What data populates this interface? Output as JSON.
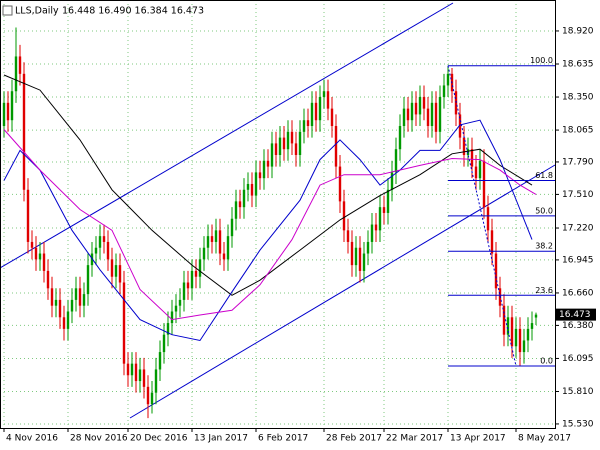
{
  "chart_data": {
    "type": "candlestick",
    "title": "LLS,Daily",
    "header_values": "16.448 16.490 16.384 16.473",
    "up_color": "#009900",
    "down_color": "#e00000",
    "grid": true,
    "grid_color": "#7fc97f",
    "ylim": [
      15.495,
      19.187
    ],
    "xlim": [
      -1,
      137.75
    ],
    "yticks": [
      {
        "value": 18.92,
        "label": "18.920"
      },
      {
        "value": 18.635,
        "label": "18.635"
      },
      {
        "value": 18.35,
        "label": "18.350"
      },
      {
        "value": 18.065,
        "label": "18.065"
      },
      {
        "value": 17.79,
        "label": "17.790"
      },
      {
        "value": 17.51,
        "label": "17.510"
      },
      {
        "value": 17.22,
        "label": "17.220"
      },
      {
        "value": 16.945,
        "label": "16.945"
      },
      {
        "value": 16.66,
        "label": "16.660"
      },
      {
        "value": 16.38,
        "label": "16.380"
      },
      {
        "value": 16.095,
        "label": "16.095"
      },
      {
        "value": 15.81,
        "label": "15.810"
      },
      {
        "value": 15.53,
        "label": "15.530"
      }
    ],
    "xticks": [
      {
        "value": 0,
        "label": "4 Nov 2016"
      },
      {
        "value": 16,
        "label": "28 Nov 2016"
      },
      {
        "value": 31,
        "label": "20 Dec 2016"
      },
      {
        "value": 47,
        "label": "13 Jan 2017"
      },
      {
        "value": 63,
        "label": "6 Feb 2017"
      },
      {
        "value": 80,
        "label": "28 Feb 2017"
      },
      {
        "value": 95,
        "label": "22 Mar 2017"
      },
      {
        "value": 111,
        "label": "13 Apr 2017"
      },
      {
        "value": 128,
        "label": "8 May 2017"
      }
    ],
    "open": [
      18.1,
      18.3,
      18.15,
      18.4,
      18.7,
      18.55,
      17.55,
      17.1,
      17.05,
      16.95,
      17.0,
      16.85,
      16.7,
      16.55,
      16.6,
      16.45,
      16.35,
      16.5,
      16.6,
      16.7,
      16.55,
      16.65,
      16.9,
      17.0,
      17.05,
      17.15,
      17.1,
      16.95,
      16.8,
      16.9,
      16.75,
      16.05,
      15.95,
      16.05,
      15.9,
      16.0,
      15.85,
      15.7,
      15.8,
      16.0,
      16.15,
      16.3,
      16.4,
      16.5,
      16.55,
      16.6,
      16.75,
      16.7,
      16.85,
      16.8,
      16.95,
      17.05,
      17.15,
      17.1,
      17.2,
      17.0,
      16.95,
      17.15,
      17.3,
      17.45,
      17.4,
      17.55,
      17.6,
      17.5,
      17.7,
      17.65,
      17.8,
      17.75,
      17.95,
      17.85,
      18.0,
      17.9,
      18.05,
      17.95,
      17.85,
      18.05,
      18.15,
      18.1,
      18.3,
      18.15,
      18.35,
      18.4,
      18.25,
      18.1,
      17.75,
      17.45,
      17.2,
      17.1,
      16.9,
      17.05,
      16.85,
      17.0,
      17.1,
      17.25,
      17.2,
      17.4,
      17.35,
      17.55,
      17.7,
      17.9,
      18.1,
      18.25,
      18.15,
      18.3,
      18.2,
      18.35,
      18.25,
      18.1,
      18.3,
      18.05,
      18.35,
      18.45,
      18.55,
      18.4,
      18.2,
      18.0,
      17.85,
      17.9,
      17.75,
      17.65,
      17.8,
      17.4,
      17.2,
      17.0,
      16.7,
      16.55,
      16.3,
      16.45,
      16.2,
      16.35,
      16.15,
      16.25,
      16.35,
      16.448
    ],
    "high": [
      18.4,
      18.4,
      18.5,
      18.95,
      18.8,
      18.65,
      17.65,
      17.2,
      17.15,
      17.1,
      17.1,
      16.95,
      16.8,
      16.7,
      16.7,
      16.55,
      16.6,
      16.7,
      16.8,
      16.8,
      16.75,
      17.0,
      17.1,
      17.15,
      17.25,
      17.25,
      17.2,
      17.05,
      17.0,
      17.0,
      16.85,
      16.15,
      16.15,
      16.15,
      16.1,
      16.1,
      15.95,
      15.9,
      16.1,
      16.25,
      16.4,
      16.5,
      16.6,
      16.65,
      16.7,
      16.85,
      16.85,
      16.95,
      16.95,
      17.05,
      17.15,
      17.25,
      17.25,
      17.3,
      17.3,
      17.1,
      17.25,
      17.4,
      17.55,
      17.55,
      17.65,
      17.7,
      17.7,
      17.8,
      17.8,
      17.9,
      17.9,
      18.05,
      18.05,
      18.1,
      18.1,
      18.15,
      18.15,
      18.05,
      18.15,
      18.25,
      18.25,
      18.4,
      18.4,
      18.45,
      18.5,
      18.5,
      18.35,
      18.2,
      17.85,
      17.55,
      17.3,
      17.2,
      17.15,
      17.15,
      17.1,
      17.2,
      17.35,
      17.35,
      17.5,
      17.5,
      17.65,
      17.8,
      18.0,
      18.2,
      18.35,
      18.35,
      18.4,
      18.4,
      18.45,
      18.45,
      18.35,
      18.4,
      18.4,
      18.45,
      18.55,
      18.62,
      18.6,
      18.5,
      18.3,
      18.1,
      18.0,
      18.0,
      17.85,
      17.9,
      17.9,
      17.5,
      17.3,
      17.1,
      16.8,
      16.65,
      16.55,
      16.55,
      16.45,
      16.45,
      16.35,
      16.45,
      16.5,
      16.49
    ],
    "low": [
      18.0,
      18.05,
      18.05,
      18.3,
      18.45,
      17.45,
      17.0,
      16.95,
      16.85,
      16.85,
      16.75,
      16.6,
      16.45,
      16.45,
      16.35,
      16.25,
      16.25,
      16.4,
      16.5,
      16.45,
      16.45,
      16.55,
      16.8,
      16.9,
      16.95,
      17.0,
      16.85,
      16.7,
      16.7,
      16.65,
      15.95,
      15.85,
      15.85,
      15.8,
      15.8,
      15.75,
      15.58,
      15.62,
      15.7,
      15.9,
      16.05,
      16.2,
      16.3,
      16.4,
      16.45,
      16.5,
      16.6,
      16.6,
      16.7,
      16.7,
      16.85,
      16.95,
      17.0,
      17.0,
      16.9,
      16.85,
      16.85,
      17.05,
      17.2,
      17.3,
      17.3,
      17.45,
      17.4,
      17.4,
      17.55,
      17.55,
      17.65,
      17.65,
      17.75,
      17.75,
      17.8,
      17.8,
      17.85,
      17.75,
      17.75,
      17.95,
      18.0,
      18.0,
      18.05,
      18.05,
      18.25,
      18.15,
      18.0,
      17.65,
      17.35,
      17.1,
      17.0,
      16.8,
      16.8,
      16.75,
      16.75,
      16.9,
      17.0,
      17.1,
      17.1,
      17.25,
      17.25,
      17.45,
      17.6,
      17.8,
      18.0,
      18.05,
      18.05,
      18.1,
      18.1,
      18.15,
      18.0,
      18.0,
      17.95,
      17.95,
      18.25,
      18.35,
      18.3,
      18.1,
      17.9,
      17.75,
      17.75,
      17.65,
      17.55,
      17.55,
      17.3,
      17.1,
      16.9,
      16.6,
      16.45,
      16.2,
      16.2,
      16.1,
      16.1,
      16.03,
      16.05,
      16.15,
      16.25,
      16.384
    ],
    "close": [
      18.3,
      18.15,
      18.4,
      18.7,
      18.55,
      17.55,
      17.1,
      17.05,
      16.95,
      17.0,
      16.85,
      16.7,
      16.55,
      16.6,
      16.45,
      16.35,
      16.5,
      16.6,
      16.7,
      16.55,
      16.65,
      16.9,
      17.0,
      17.05,
      17.15,
      17.1,
      16.95,
      16.8,
      16.9,
      16.75,
      16.05,
      15.95,
      16.05,
      15.9,
      16.0,
      15.85,
      15.7,
      15.8,
      16.0,
      16.15,
      16.3,
      16.4,
      16.5,
      16.55,
      16.6,
      16.75,
      16.7,
      16.85,
      16.8,
      16.95,
      17.05,
      17.15,
      17.1,
      17.2,
      17.0,
      16.95,
      17.15,
      17.3,
      17.45,
      17.4,
      17.55,
      17.6,
      17.5,
      17.7,
      17.65,
      17.8,
      17.75,
      17.95,
      17.85,
      18.0,
      17.9,
      18.05,
      17.95,
      17.85,
      18.05,
      18.15,
      18.1,
      18.3,
      18.15,
      18.35,
      18.4,
      18.25,
      18.1,
      17.75,
      17.45,
      17.2,
      17.1,
      16.9,
      17.05,
      16.85,
      17.0,
      17.1,
      17.25,
      17.2,
      17.4,
      17.35,
      17.55,
      17.7,
      17.9,
      18.1,
      18.25,
      18.15,
      18.3,
      18.2,
      18.35,
      18.25,
      18.1,
      18.3,
      18.05,
      18.35,
      18.45,
      18.55,
      18.4,
      18.2,
      18.0,
      17.85,
      17.9,
      17.75,
      17.65,
      17.8,
      17.4,
      17.2,
      17.0,
      16.7,
      16.55,
      16.3,
      16.45,
      16.2,
      16.35,
      16.15,
      16.25,
      16.35,
      16.4,
      16.473
    ],
    "overlays": [
      {
        "color": "#000000",
        "x": [
          0,
          9,
          19,
          27,
          37,
          47,
          57,
          64,
          74,
          84,
          94,
          104,
          112,
          119,
          124,
          132
        ],
        "values": [
          18.54,
          18.41,
          17.98,
          17.55,
          17.2,
          16.9,
          16.64,
          16.77,
          17.03,
          17.29,
          17.5,
          17.68,
          17.86,
          17.9,
          17.76,
          17.59
        ]
      },
      {
        "color": "#0000cc",
        "x": [
          0,
          4,
          9,
          17,
          24,
          34,
          42,
          49,
          57,
          64,
          74,
          79,
          84,
          89,
          94,
          99,
          104,
          109,
          114,
          119,
          124,
          129,
          132
        ],
        "values": [
          17.63,
          17.89,
          17.72,
          17.2,
          16.86,
          16.43,
          16.3,
          16.25,
          16.67,
          17.03,
          17.46,
          17.81,
          17.98,
          17.81,
          17.59,
          17.72,
          17.89,
          17.89,
          18.11,
          18.15,
          17.81,
          17.38,
          17.12
        ]
      },
      {
        "color": "#cc00cc",
        "x": [
          0,
          9,
          19,
          27,
          34,
          42,
          49,
          57,
          64,
          72,
          79,
          85,
          94,
          104,
          112,
          119,
          124,
          129,
          133
        ],
        "values": [
          18.07,
          17.72,
          17.38,
          17.2,
          16.69,
          16.43,
          16.47,
          16.51,
          16.73,
          17.12,
          17.59,
          17.68,
          17.68,
          17.76,
          17.82,
          17.81,
          17.72,
          17.59,
          17.51
        ]
      }
    ],
    "fibonacci": {
      "color": "#0000cc",
      "start": 111,
      "levels": [
        {
          "name": "100.0",
          "price": 18.62
        },
        {
          "name": "61.8",
          "price": 17.63
        },
        {
          "name": "50.0",
          "price": 17.325
        },
        {
          "name": "38.2",
          "price": 17.02
        },
        {
          "name": "23.6",
          "price": 16.64
        },
        {
          "name": "0.0",
          "price": 16.03
        }
      ]
    },
    "last_price": {
      "value": 16.473,
      "label": "16.473"
    }
  }
}
